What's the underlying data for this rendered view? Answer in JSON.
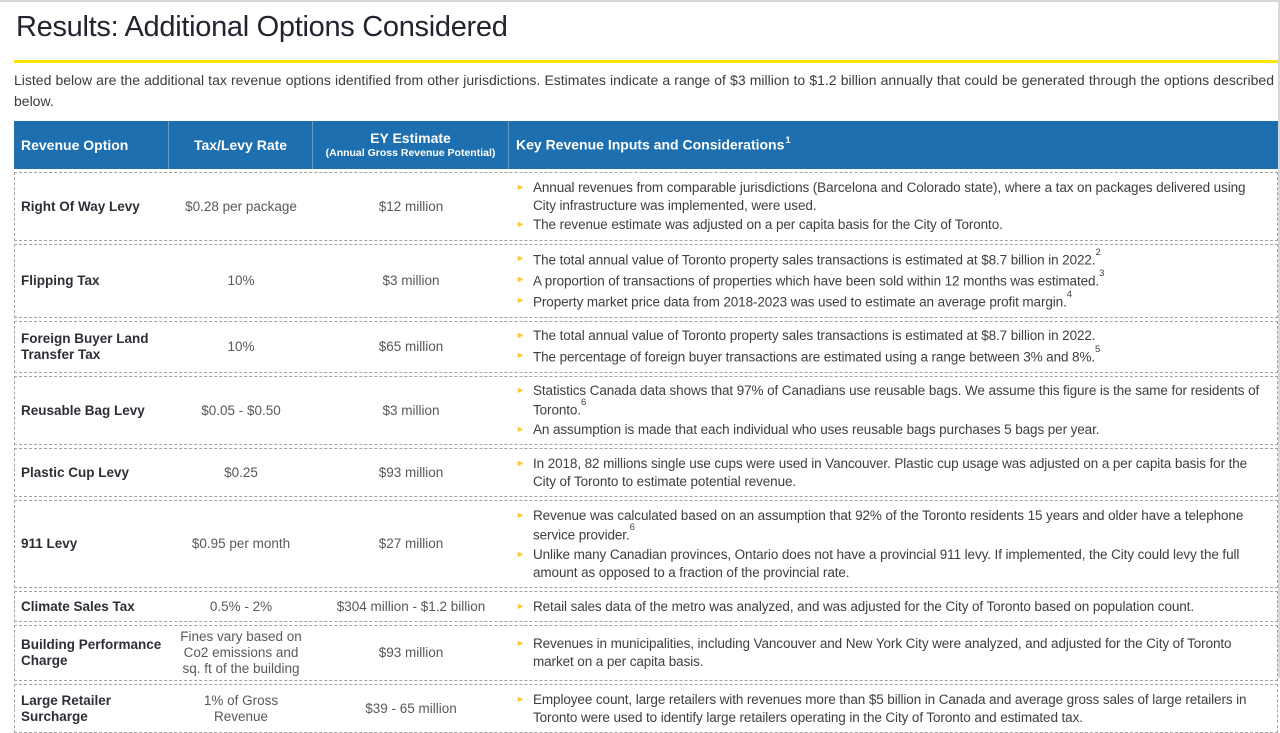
{
  "page": {
    "title": "Results: Additional Options Considered",
    "intro": "Listed below are the additional tax revenue options identified from other jurisdictions. Estimates indicate a range of $3 million to $1.2 billion annually that could be generated through the options described below."
  },
  "colors": {
    "header_bg": "#1d6fafff",
    "header_divider": "#5d9bc8",
    "accent_yellow": "#ffe600",
    "bullet_gold": "#ffc72c",
    "title_text": "#23232f"
  },
  "table": {
    "headers": {
      "col1": "Revenue Option",
      "col2": "Tax/Levy Rate",
      "col3_main": "EY Estimate",
      "col3_sub": "(Annual Gross Revenue Potential)",
      "col4": "Key Revenue Inputs and Considerations",
      "col4_sup": "1"
    },
    "rows": [
      {
        "option": "Right Of Way Levy",
        "rate": "$0.28 per package",
        "estimate": "$12 million",
        "bullets": [
          {
            "text": "Annual revenues from comparable jurisdictions (Barcelona and Colorado state), where a tax on packages delivered using City infrastructure was implemented, were used.",
            "sup": ""
          },
          {
            "text": "The revenue estimate was adjusted on a per capita basis for the City of Toronto.",
            "sup": ""
          }
        ]
      },
      {
        "option": "Flipping Tax",
        "rate": "10%",
        "estimate": "$3 million",
        "bullets": [
          {
            "text": "The total annual value of Toronto property sales transactions is estimated at $8.7 billion in 2022.",
            "sup": "2"
          },
          {
            "text": "A proportion of transactions of properties which have been sold within 12 months was estimated.",
            "sup": "3"
          },
          {
            "text": "Property market price data from 2018-2023 was used to estimate an average profit margin.",
            "sup": "4"
          }
        ]
      },
      {
        "option": "Foreign Buyer Land Transfer Tax",
        "rate": "10%",
        "estimate": "$65 million",
        "bullets": [
          {
            "text": "The total annual value of Toronto property sales transactions is estimated at $8.7 billion in 2022.",
            "sup": ""
          },
          {
            "text": "The percentage of foreign buyer transactions are estimated using a range between 3% and 8%.",
            "sup": "5"
          }
        ]
      },
      {
        "option": "Reusable Bag Levy",
        "rate": "$0.05 - $0.50",
        "estimate": "$3 million",
        "bullets": [
          {
            "text": "Statistics Canada data shows that 97% of Canadians use reusable bags. We assume this figure is the same for residents of Toronto.",
            "sup": "6"
          },
          {
            "text": "An assumption is made that each individual who uses reusable bags purchases 5 bags per year.",
            "sup": ""
          }
        ]
      },
      {
        "option": "Plastic Cup Levy",
        "rate": "$0.25",
        "estimate": "$93 million",
        "bullets": [
          {
            "text": "In 2018, 82 millions single use cups were used in Vancouver. Plastic cup usage was adjusted on a per capita basis for the City of Toronto to estimate potential revenue.",
            "sup": ""
          }
        ]
      },
      {
        "option": "911 Levy",
        "rate": "$0.95 per month",
        "estimate": "$27 million",
        "bullets": [
          {
            "text": "Revenue was calculated based on an assumption that 92% of the Toronto residents 15 years and older have a telephone service provider.",
            "sup": "6"
          },
          {
            "text": "Unlike many Canadian provinces, Ontario does not have a provincial 911 levy. If implemented, the City could levy the full amount as opposed to a fraction of the provincial rate.",
            "sup": ""
          }
        ]
      },
      {
        "option": "Climate Sales Tax",
        "rate": "0.5% - 2%",
        "estimate": "$304 million - $1.2 billion",
        "bullets": [
          {
            "text": "Retail sales data of the metro was analyzed, and was adjusted for the City of Toronto based on population count.",
            "sup": ""
          }
        ]
      },
      {
        "option": "Building Performance Charge",
        "rate": "Fines vary based on Co2 emissions and sq. ft of the building",
        "estimate": "$93 million",
        "bullets": [
          {
            "text": "Revenues in municipalities, including Vancouver and New York City were analyzed, and adjusted for the City of Toronto market on a per capita basis.",
            "sup": ""
          }
        ]
      },
      {
        "option": "Large Retailer Surcharge",
        "rate": "1% of Gross Revenue",
        "estimate": "$39 - 65 million",
        "bullets": [
          {
            "text": "Employee count, large retailers with revenues more than $5 billion in Canada and average gross sales of large retailers in Toronto were used to identify large retailers operating in the City of Toronto and estimated tax.",
            "sup": ""
          }
        ]
      }
    ]
  }
}
